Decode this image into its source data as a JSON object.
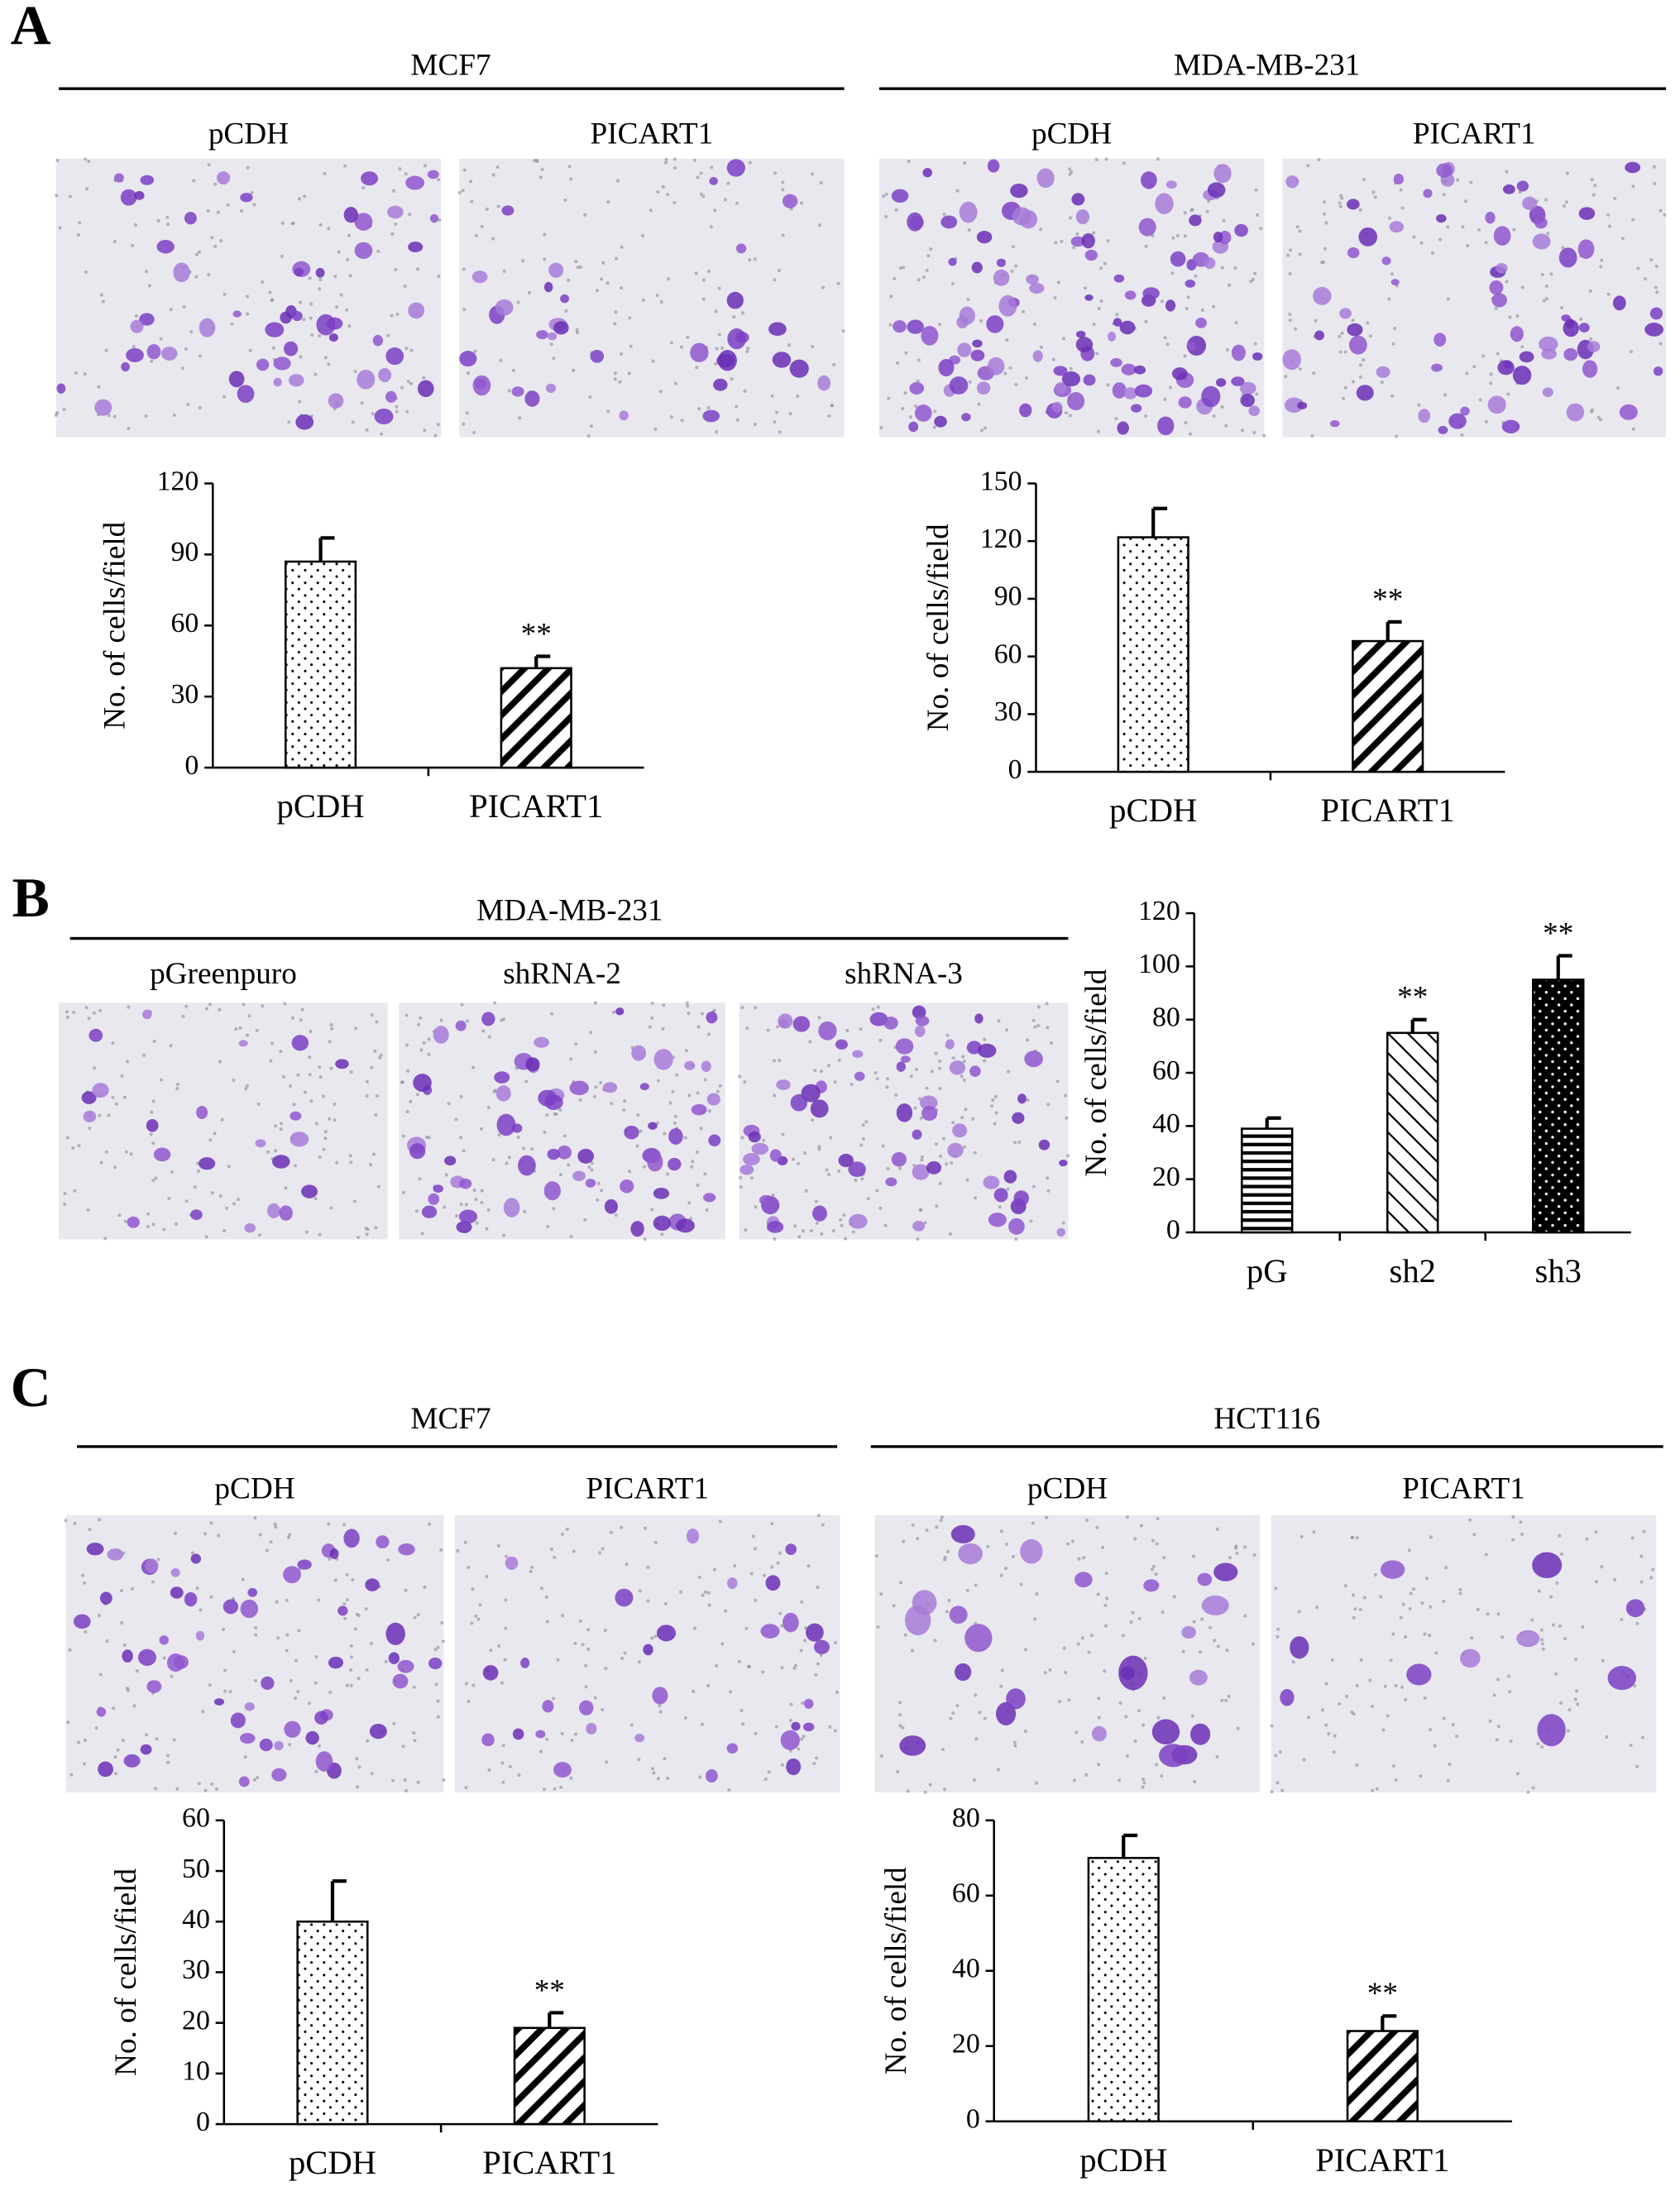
{
  "panels": [
    {
      "label": "A",
      "groups": [
        {
          "title": "MCF7",
          "images": [
            "pCDH",
            "PICART1"
          ]
        },
        {
          "title": "MDA-MB-231",
          "images": [
            "pCDH",
            "PICART1"
          ]
        }
      ]
    },
    {
      "label": "B",
      "groups": [
        {
          "title": "MDA-MB-231",
          "images": [
            "pGreenpuro",
            "shRNA-2",
            "shRNA-3"
          ]
        }
      ]
    },
    {
      "label": "C",
      "groups": [
        {
          "title": "MCF7",
          "images": [
            "pCDH",
            "PICART1"
          ]
        },
        {
          "title": "HCT116",
          "images": [
            "pCDH",
            "PICART1"
          ]
        }
      ]
    }
  ],
  "chart_data": [
    {
      "type": "bar",
      "ylabel": "No. of cells/field",
      "categories": [
        "pCDH",
        "PICART1"
      ],
      "values": [
        87,
        42
      ],
      "errors": [
        10,
        5
      ],
      "significance": [
        null,
        "**"
      ],
      "patterns": [
        "dots",
        "hatch"
      ],
      "color": "#000000",
      "ylim": [
        0,
        120
      ],
      "yticks": [
        0,
        30,
        60,
        90,
        120
      ]
    },
    {
      "type": "bar",
      "ylabel": "No. of cells/field",
      "categories": [
        "pCDH",
        "PICART1"
      ],
      "values": [
        122,
        68
      ],
      "errors": [
        15,
        10
      ],
      "significance": [
        null,
        "**"
      ],
      "patterns": [
        "dots",
        "hatch"
      ],
      "color": "#000000",
      "ylim": [
        0,
        150
      ],
      "yticks": [
        0,
        30,
        60,
        90,
        120,
        150
      ]
    },
    {
      "type": "bar",
      "ylabel": "No. of cells/field",
      "categories": [
        "pG",
        "sh2",
        "sh3"
      ],
      "values": [
        39,
        75,
        95
      ],
      "errors": [
        4,
        5,
        9
      ],
      "significance": [
        null,
        "**",
        "**"
      ],
      "patterns": [
        "hlines",
        "lightdiag",
        "darkdots"
      ],
      "color": "#000000",
      "ylim": [
        0,
        120
      ],
      "yticks": [
        0,
        20,
        40,
        60,
        80,
        100,
        120
      ]
    },
    {
      "type": "bar",
      "ylabel": "No. of cells/field",
      "categories": [
        "pCDH",
        "PICART1"
      ],
      "values": [
        40,
        19
      ],
      "errors": [
        8,
        3
      ],
      "significance": [
        null,
        "**"
      ],
      "patterns": [
        "dots",
        "hatch"
      ],
      "color": "#000000",
      "ylim": [
        0,
        60
      ],
      "yticks": [
        0,
        10,
        20,
        30,
        40,
        50,
        60
      ]
    },
    {
      "type": "bar",
      "ylabel": "No. of cells/field",
      "categories": [
        "pCDH",
        "PICART1"
      ],
      "values": [
        70,
        24
      ],
      "errors": [
        6,
        4
      ],
      "significance": [
        null,
        "**"
      ],
      "patterns": [
        "dots",
        "hatch"
      ],
      "color": "#000000",
      "ylim": [
        0,
        80
      ],
      "yticks": [
        0,
        20,
        40,
        60,
        80
      ]
    }
  ]
}
